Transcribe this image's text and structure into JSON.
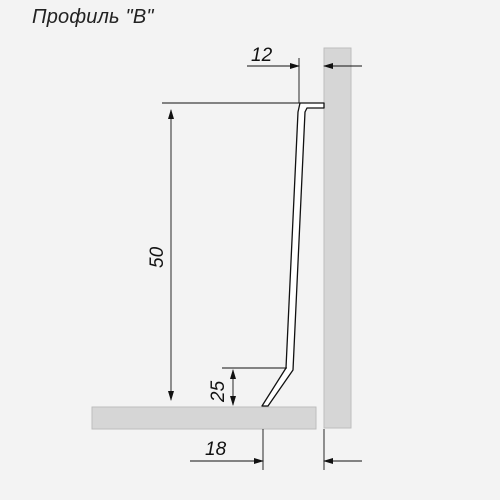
{
  "title": "Профиль \"B\"",
  "dimensions": {
    "top_width": "12",
    "height": "50",
    "foot_height": "25",
    "foot_offset": "18"
  },
  "colors": {
    "background": "#f3f3f3",
    "wall": "#d6d6d6",
    "line": "#111111",
    "profile_fill": "#ffffff"
  }
}
